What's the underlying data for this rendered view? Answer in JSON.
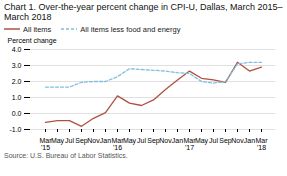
{
  "chart_data": {
    "type": "line",
    "title": "Chart 1. Over-the-year percent change in CPI-U, Dallas, March 2015–March 2018",
    "ylabel": "Percent change",
    "source": "Source: U.S. Bureau of Labor Statistics.",
    "categories": [
      "Mar\n'15",
      "May",
      "Jul",
      "Sep",
      "Nov",
      "Jan",
      "Mar\n'16",
      "May",
      "Jul",
      "Sep",
      "Nov",
      "Jan",
      "Mar\n'17",
      "May",
      "Jul",
      "Sep",
      "Nov",
      "Jan",
      "Mar\n'18"
    ],
    "series": [
      {
        "name": "All items",
        "color": "#b05040",
        "line_style": "solid",
        "values": [
          -0.55,
          -0.45,
          -0.45,
          -0.8,
          -0.3,
          0.05,
          1.1,
          0.65,
          0.5,
          0.85,
          1.5,
          2.1,
          2.65,
          2.2,
          2.1,
          1.95,
          3.2,
          2.65,
          2.9
        ]
      },
      {
        "name": "All items less food and energy",
        "color": "#7fbfdf",
        "line_style": "dashed",
        "values": [
          1.65,
          1.65,
          1.65,
          1.95,
          2.0,
          2.0,
          2.3,
          2.8,
          2.75,
          2.7,
          2.65,
          2.55,
          2.5,
          2.0,
          1.9,
          2.0,
          3.1,
          3.2,
          3.2
        ]
      }
    ],
    "ylim": [
      -1.0,
      4.0
    ],
    "yticks": [
      {
        "value": -1.0,
        "label": "-1.0"
      },
      {
        "value": 0.0,
        "label": "0.0"
      },
      {
        "value": 1.0,
        "label": "1.0"
      },
      {
        "value": 2.0,
        "label": "2.0"
      },
      {
        "value": 3.0,
        "label": "3.0"
      },
      {
        "value": 4.0,
        "label": "4.0"
      }
    ],
    "grid": "y",
    "legend": "top left"
  }
}
